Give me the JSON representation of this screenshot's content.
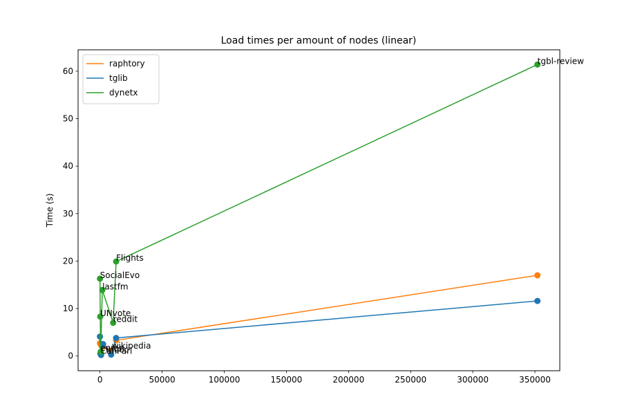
{
  "chart_data": {
    "type": "line",
    "title": "Load times per amount of nodes (linear)",
    "xlabel": "",
    "ylabel": "Time (s)",
    "xlim": [
      -17600,
      370000
    ],
    "ylim": [
      -3.1,
      64.5
    ],
    "xticks": [
      0,
      50000,
      100000,
      150000,
      200000,
      250000,
      300000,
      350000
    ],
    "yticks": [
      0,
      10,
      20,
      30,
      40,
      50,
      60
    ],
    "legend_position": "top-left",
    "grid": false,
    "colors": {
      "raphtory": "#ff7f0e",
      "tglib": "#1f77b4",
      "dynetx": "#2ca02c"
    },
    "series": [
      {
        "name": "raphtory",
        "points": [
          {
            "x": 0,
            "y": 2.7
          },
          {
            "x": 800,
            "y": 2.3
          },
          {
            "x": 2500,
            "y": 2.0
          },
          {
            "x": 9000,
            "y": 1.0
          },
          {
            "x": 13000,
            "y": 3.3
          },
          {
            "x": 352000,
            "y": 17.0
          }
        ]
      },
      {
        "name": "tglib",
        "points": [
          {
            "x": 0,
            "y": 4.1
          },
          {
            "x": 300,
            "y": 0.5
          },
          {
            "x": 900,
            "y": 0.2
          },
          {
            "x": 2500,
            "y": 2.5
          },
          {
            "x": 9000,
            "y": 0.3
          },
          {
            "x": 13000,
            "y": 3.8
          },
          {
            "x": 352000,
            "y": 11.6
          }
        ]
      },
      {
        "name": "dynetx",
        "points": [
          {
            "x": 0,
            "y": 16.3
          },
          {
            "x": 200,
            "y": 8.3
          },
          {
            "x": 600,
            "y": 0.9
          },
          {
            "x": 1900,
            "y": 13.9
          },
          {
            "x": 10600,
            "y": 7.0
          },
          {
            "x": 13000,
            "y": 19.9
          },
          {
            "x": 352000,
            "y": 61.4
          }
        ]
      }
    ],
    "annotations": [
      {
        "text": "SocialEvo",
        "x": 0,
        "y": 16.3
      },
      {
        "text": "lastfm",
        "x": 1900,
        "y": 13.9
      },
      {
        "text": "UNvote",
        "x": 200,
        "y": 8.3
      },
      {
        "text": "reddit",
        "x": 10600,
        "y": 7.0
      },
      {
        "text": "Flights",
        "x": 13000,
        "y": 19.9
      },
      {
        "text": "wikipedia",
        "x": 9500,
        "y": 1.4
      },
      {
        "text": "enron",
        "x": 300,
        "y": 1.0
      },
      {
        "text": "mooc",
        "x": 4800,
        "y": 0.6
      },
      {
        "text": "CanParl",
        "x": 600,
        "y": 0.3
      },
      {
        "text": "tgbl-review",
        "x": 352000,
        "y": 61.4
      }
    ]
  }
}
